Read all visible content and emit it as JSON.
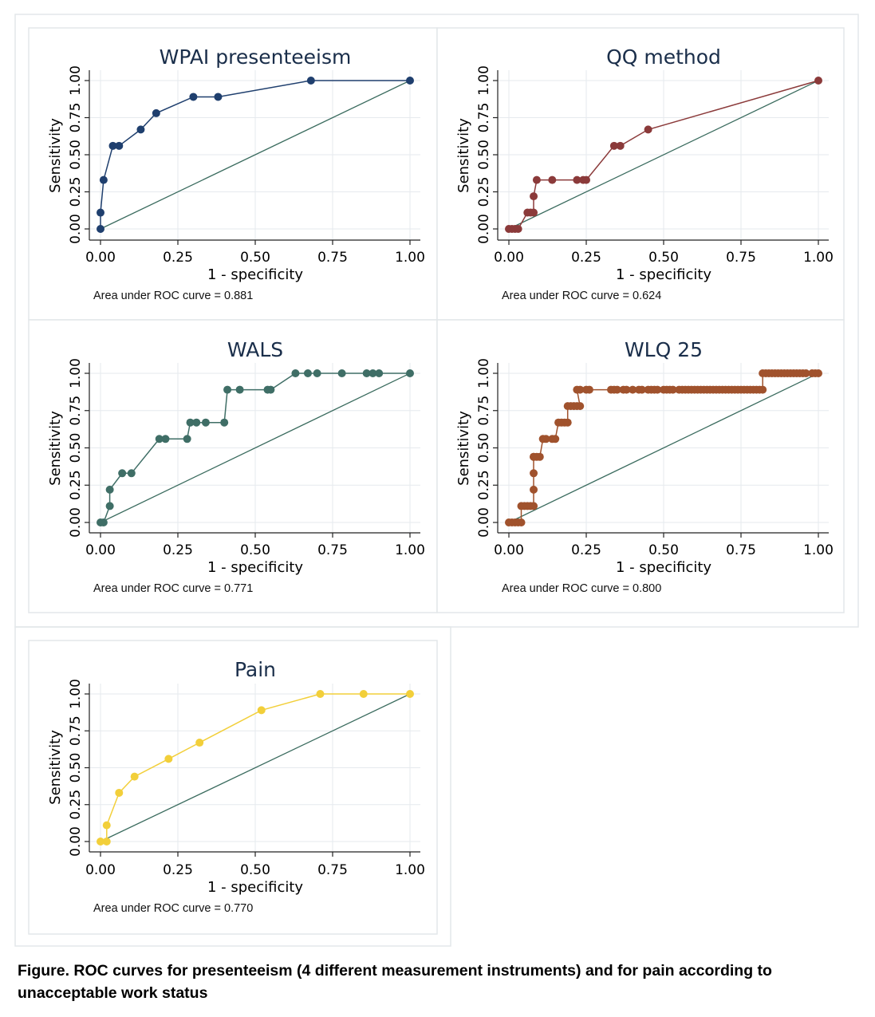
{
  "caption": "Figure. ROC curves for presenteeism (4 different measurement instruments) and for pain according to unacceptable work status",
  "chart_data": [
    {
      "type": "line",
      "title": "WPAI presenteeism",
      "xlabel": "1 - specificity",
      "ylabel": "Sensitivity",
      "xlim": [
        0,
        1
      ],
      "ylim": [
        0,
        1
      ],
      "xticks": [
        "0.00",
        "0.25",
        "0.50",
        "0.75",
        "1.00"
      ],
      "yticks": [
        "0.00",
        "0.25",
        "0.50",
        "0.75",
        "1.00"
      ],
      "grid": true,
      "color": "#1f3f6e",
      "reference_line": true,
      "annotation": "Area under ROC curve = 0.881",
      "x": [
        0,
        0,
        0.01,
        0.04,
        0.06,
        0.13,
        0.18,
        0.3,
        0.38,
        0.68,
        1.0
      ],
      "y": [
        0,
        0.11,
        0.33,
        0.56,
        0.56,
        0.67,
        0.78,
        0.89,
        0.89,
        1.0,
        1.0
      ]
    },
    {
      "type": "line",
      "title": "QQ method",
      "xlabel": "1 - specificity",
      "ylabel": "Sensitivity",
      "xlim": [
        0,
        1
      ],
      "ylim": [
        0,
        1
      ],
      "xticks": [
        "0.00",
        "0.25",
        "0.50",
        "0.75",
        "1.00"
      ],
      "yticks": [
        "0.00",
        "0.25",
        "0.50",
        "0.75",
        "1.00"
      ],
      "grid": true,
      "color": "#8b3a3a",
      "reference_line": true,
      "annotation": "Area under ROC curve = 0.624",
      "x": [
        0,
        0.01,
        0.02,
        0.03,
        0.06,
        0.07,
        0.08,
        0.08,
        0.09,
        0.14,
        0.22,
        0.24,
        0.25,
        0.34,
        0.36,
        0.45,
        1.0
      ],
      "y": [
        0,
        0,
        0,
        0,
        0.11,
        0.11,
        0.11,
        0.22,
        0.33,
        0.33,
        0.33,
        0.33,
        0.33,
        0.56,
        0.56,
        0.67,
        1.0
      ]
    },
    {
      "type": "line",
      "title": "WALS",
      "xlabel": "1 - specificity",
      "ylabel": "Sensitivity",
      "xlim": [
        0,
        1
      ],
      "ylim": [
        0,
        1
      ],
      "xticks": [
        "0.00",
        "0.25",
        "0.50",
        "0.75",
        "1.00"
      ],
      "yticks": [
        "0.00",
        "0.25",
        "0.50",
        "0.75",
        "1.00"
      ],
      "grid": true,
      "color": "#3f6e66",
      "reference_line": true,
      "annotation": "Area under ROC curve = 0.771",
      "x": [
        0,
        0.01,
        0.03,
        0.03,
        0.07,
        0.1,
        0.19,
        0.21,
        0.28,
        0.29,
        0.31,
        0.34,
        0.4,
        0.41,
        0.45,
        0.54,
        0.55,
        0.63,
        0.67,
        0.7,
        0.78,
        0.86,
        0.88,
        0.9,
        1.0
      ],
      "y": [
        0,
        0,
        0.11,
        0.22,
        0.33,
        0.33,
        0.56,
        0.56,
        0.56,
        0.67,
        0.67,
        0.67,
        0.67,
        0.89,
        0.89,
        0.89,
        0.89,
        1.0,
        1.0,
        1.0,
        1.0,
        1.0,
        1.0,
        1.0,
        1.0
      ],
      "polyline_order": "as listed"
    },
    {
      "type": "line",
      "title": "WLQ 25",
      "xlabel": "1 - specificity",
      "ylabel": "Sensitivity",
      "xlim": [
        0,
        1
      ],
      "ylim": [
        0,
        1
      ],
      "xticks": [
        "0.00",
        "0.25",
        "0.50",
        "0.75",
        "1.00"
      ],
      "yticks": [
        "0.00",
        "0.25",
        "0.50",
        "0.75",
        "1.00"
      ],
      "grid": true,
      "color": "#a0522d",
      "reference_line": true,
      "annotation": "Area under ROC curve = 0.800",
      "x": [
        0,
        0.01,
        0.02,
        0.03,
        0.04,
        0.04,
        0.05,
        0.06,
        0.07,
        0.08,
        0.08,
        0.08,
        0.08,
        0.08,
        0.09,
        0.1,
        0.11,
        0.12,
        0.14,
        0.15,
        0.16,
        0.17,
        0.18,
        0.19,
        0.19,
        0.2,
        0.21,
        0.22,
        0.23,
        0.22,
        0.23,
        0.25,
        0.26,
        0.33,
        0.34,
        0.35,
        0.37,
        0.38,
        0.4,
        0.42,
        0.43,
        0.45,
        0.46,
        0.47,
        0.48,
        0.5,
        0.51,
        0.52,
        0.53,
        0.55,
        0.56,
        0.57,
        0.58,
        0.59,
        0.6,
        0.61,
        0.62,
        0.63,
        0.64,
        0.65,
        0.66,
        0.67,
        0.68,
        0.69,
        0.7,
        0.71,
        0.72,
        0.73,
        0.74,
        0.75,
        0.76,
        0.77,
        0.78,
        0.79,
        0.8,
        0.81,
        0.82,
        0.82,
        0.83,
        0.84,
        0.85,
        0.86,
        0.87,
        0.88,
        0.89,
        0.9,
        0.91,
        0.92,
        0.93,
        0.94,
        0.95,
        0.96,
        0.98,
        0.99,
        1.0
      ],
      "y": [
        0,
        0,
        0,
        0,
        0,
        0.11,
        0.11,
        0.11,
        0.11,
        0.11,
        0.22,
        0.33,
        0.44,
        0.44,
        0.44,
        0.44,
        0.56,
        0.56,
        0.56,
        0.56,
        0.67,
        0.67,
        0.67,
        0.67,
        0.78,
        0.78,
        0.78,
        0.78,
        0.78,
        0.89,
        0.89,
        0.89,
        0.89,
        0.89,
        0.89,
        0.89,
        0.89,
        0.89,
        0.89,
        0.89,
        0.89,
        0.89,
        0.89,
        0.89,
        0.89,
        0.89,
        0.89,
        0.89,
        0.89,
        0.89,
        0.89,
        0.89,
        0.89,
        0.89,
        0.89,
        0.89,
        0.89,
        0.89,
        0.89,
        0.89,
        0.89,
        0.89,
        0.89,
        0.89,
        0.89,
        0.89,
        0.89,
        0.89,
        0.89,
        0.89,
        0.89,
        0.89,
        0.89,
        0.89,
        0.89,
        0.89,
        0.89,
        1.0,
        1.0,
        1.0,
        1.0,
        1.0,
        1.0,
        1.0,
        1.0,
        1.0,
        1.0,
        1.0,
        1.0,
        1.0,
        1.0,
        1.0,
        1.0,
        1.0,
        1.0
      ]
    },
    {
      "type": "line",
      "title": "Pain",
      "xlabel": "1 - specificity",
      "ylabel": "Sensitivity",
      "xlim": [
        0,
        1
      ],
      "ylim": [
        0,
        1
      ],
      "xticks": [
        "0.00",
        "0.25",
        "0.50",
        "0.75",
        "1.00"
      ],
      "yticks": [
        "0.00",
        "0.25",
        "0.50",
        "0.75",
        "1.00"
      ],
      "grid": true,
      "color": "#f2cf3a",
      "reference_line": true,
      "annotation": "Area under ROC curve = 0.770",
      "x": [
        0,
        0.02,
        0.02,
        0.06,
        0.11,
        0.22,
        0.32,
        0.52,
        0.71,
        0.85,
        1.0
      ],
      "y": [
        0,
        0,
        0.11,
        0.33,
        0.44,
        0.56,
        0.67,
        0.89,
        1.0,
        1.0,
        1.0
      ]
    }
  ]
}
